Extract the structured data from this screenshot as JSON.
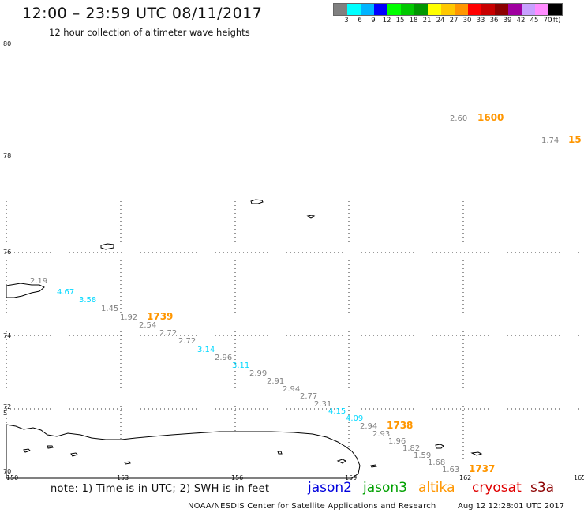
{
  "header": {
    "title": "12:00 – 23:59 UTC 08/11/2017",
    "subtitle": "12 hour collection of altimeter wave heights"
  },
  "legend": {
    "unit": "(ft)",
    "colors": [
      "#808080",
      "#00ffff",
      "#00b4ff",
      "#0000ff",
      "#00ff00",
      "#00c800",
      "#009600",
      "#ffff00",
      "#ffc800",
      "#ff9600",
      "#ff0000",
      "#c80000",
      "#8c0000",
      "#a000a0",
      "#c8a0ff",
      "#ff8cff",
      "#000000"
    ],
    "ticks": [
      "3",
      "6",
      "9",
      "12",
      "15",
      "18",
      "21",
      "24",
      "27",
      "30",
      "33",
      "36",
      "39",
      "42",
      "45",
      "70"
    ]
  },
  "axes": {
    "lon_labels": [
      "150",
      "153",
      "156",
      "159",
      "162",
      "165"
    ],
    "lat_labels": [
      "80",
      "78",
      "76",
      "74",
      "72",
      "70"
    ],
    "lat_extra": "5"
  },
  "observations": [
    {
      "value": "2.60",
      "color": "#808080"
    },
    {
      "value": "1600",
      "color": "#ff9600",
      "time": true
    },
    {
      "value": "1.74",
      "color": "#808080"
    },
    {
      "value": "15",
      "color": "#ff9600",
      "time": true
    },
    {
      "value": "2.19",
      "color": "#808080"
    },
    {
      "value": "4.67",
      "color": "#00d8ff"
    },
    {
      "value": "3.58",
      "color": "#00d8ff"
    },
    {
      "value": "1.45",
      "color": "#808080"
    },
    {
      "value": "1.92",
      "color": "#808080"
    },
    {
      "value": "1739",
      "color": "#ff9600",
      "time": true
    },
    {
      "value": "2.54",
      "color": "#808080"
    },
    {
      "value": "2.72",
      "color": "#808080"
    },
    {
      "value": "2.72",
      "color": "#808080"
    },
    {
      "value": "3.14",
      "color": "#00d8ff"
    },
    {
      "value": "2.96",
      "color": "#808080"
    },
    {
      "value": "3.11",
      "color": "#00d8ff"
    },
    {
      "value": "2.99",
      "color": "#808080"
    },
    {
      "value": "2.91",
      "color": "#808080"
    },
    {
      "value": "2.94",
      "color": "#808080"
    },
    {
      "value": "2.77",
      "color": "#808080"
    },
    {
      "value": "2.31",
      "color": "#808080"
    },
    {
      "value": "4.15",
      "color": "#00d8ff"
    },
    {
      "value": "4.09",
      "color": "#00d8ff"
    },
    {
      "value": "2.94",
      "color": "#808080"
    },
    {
      "value": "1738",
      "color": "#ff9600",
      "time": true
    },
    {
      "value": "2.93",
      "color": "#808080"
    },
    {
      "value": "1.96",
      "color": "#808080"
    },
    {
      "value": "1.82",
      "color": "#808080"
    },
    {
      "value": "1.59",
      "color": "#808080"
    },
    {
      "value": "1.68",
      "color": "#808080"
    },
    {
      "value": "1.63",
      "color": "#808080"
    },
    {
      "value": "1737",
      "color": "#ff9600",
      "time": true
    }
  ],
  "note": "note: 1) Time is in UTC; 2) SWH is in feet",
  "satellites": [
    {
      "name": "jason2",
      "color": "#0000dd"
    },
    {
      "name": "jason3",
      "color": "#00a000"
    },
    {
      "name": "altika",
      "color": "#ff9600"
    },
    {
      "name": "cryosat",
      "color": "#e00000"
    },
    {
      "name": "s3a",
      "color": "#8c0000"
    }
  ],
  "footer": {
    "credit": "NOAA/NESDIS Center for Satellite Applications and Research",
    "timestamp": "Aug 12 12:28:01 UTC 2017"
  }
}
